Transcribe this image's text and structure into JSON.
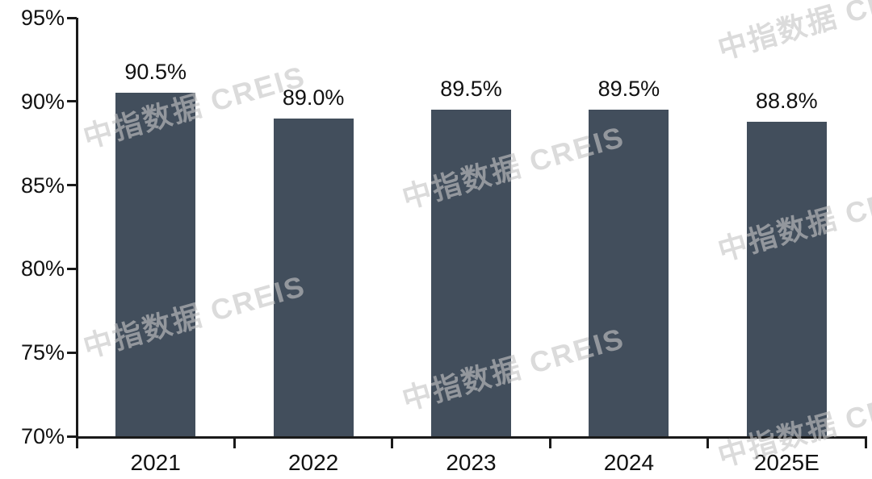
{
  "chart_data": {
    "type": "bar",
    "title": "",
    "xlabel": "",
    "ylabel": "",
    "categories": [
      "2021",
      "2022",
      "2023",
      "2024",
      "2025E"
    ],
    "values": [
      90.5,
      89.0,
      89.5,
      89.5,
      88.8
    ],
    "value_labels": [
      "90.5%",
      "89.0%",
      "89.5%",
      "89.5%",
      "88.8%"
    ],
    "ylim": [
      70,
      95
    ],
    "ytick_step": 5,
    "ytick_labels": [
      "70%",
      "75%",
      "80%",
      "85%",
      "90%",
      "95%"
    ],
    "grid": false,
    "legend_position": "none",
    "bar_color": "#424e5c",
    "axis_color": "#1a1a1a",
    "label_color": "#111111"
  },
  "watermark": {
    "text": "中指数据 CREIS",
    "color": "rgba(197,197,197,0.62)"
  }
}
